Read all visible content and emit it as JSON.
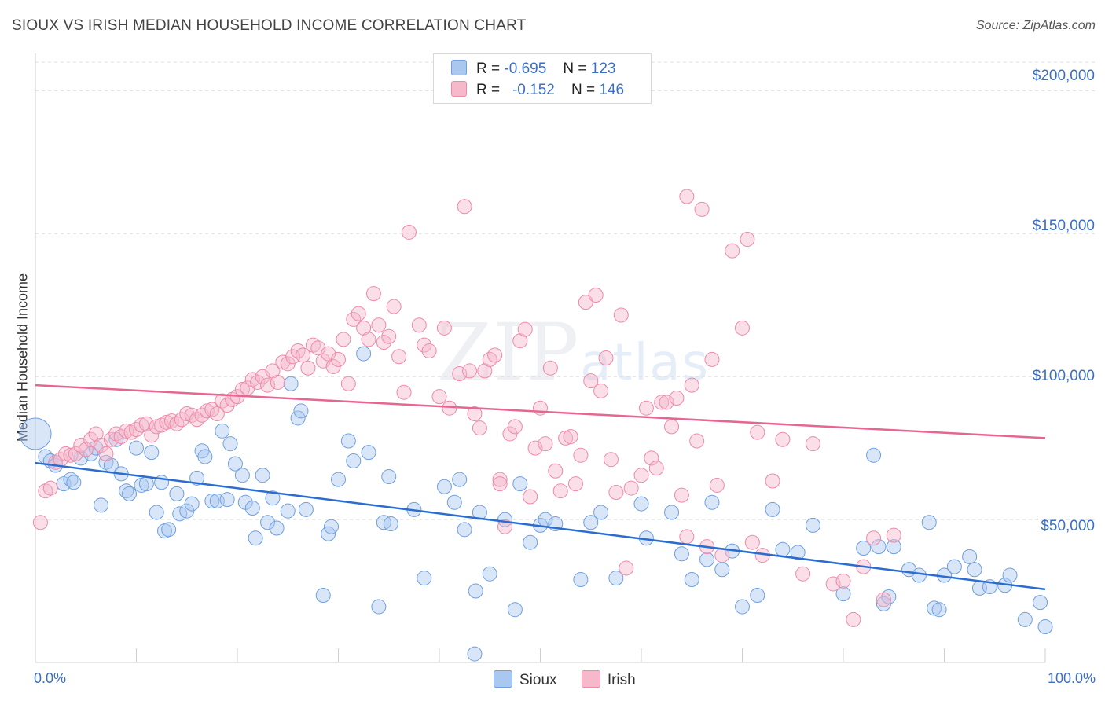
{
  "title": "SIOUX VS IRISH MEDIAN HOUSEHOLD INCOME CORRELATION CHART",
  "source": "Source: ZipAtlas.com",
  "watermark": {
    "zip": "ZIP",
    "atlas": "atlas"
  },
  "legend": {
    "rows": [
      {
        "r_label": "R =",
        "r_value": "-0.695",
        "n_label": "N =",
        "n_value": "123",
        "color": "#a9c7ef"
      },
      {
        "r_label": "R =",
        "r_value": "-0.152",
        "n_label": "N =",
        "n_value": "146",
        "color": "#f5b9cb"
      }
    ],
    "bottom": [
      {
        "label": "Sioux",
        "color": "#a9c7ef"
      },
      {
        "label": "Irish",
        "color": "#f5b9cb"
      }
    ]
  },
  "colors": {
    "sioux": "#6f9fe0",
    "sioux_line": "#2a6dd0",
    "irish": "#ef89a8",
    "irish_line": "#e76592",
    "axis_text": "#3a6fc4",
    "grid": "#dedede"
  },
  "chart_data": {
    "type": "scatter",
    "title": "SIOUX VS IRISH MEDIAN HOUSEHOLD INCOME CORRELATION CHART",
    "xlabel": "",
    "ylabel": "Median Household Income",
    "xlim": [
      0,
      100
    ],
    "ylim": [
      0,
      210000
    ],
    "x_tick_labels": [
      "0.0%",
      "100.0%"
    ],
    "y_ticks": [
      {
        "value": 50000,
        "label": "$50,000"
      },
      {
        "value": 100000,
        "label": "$100,000"
      },
      {
        "value": 150000,
        "label": "$150,000"
      },
      {
        "value": 200000,
        "label": "$200,000"
      }
    ],
    "series": [
      {
        "name": "Sioux",
        "trend": {
          "x": [
            0,
            100
          ],
          "y": [
            69800,
            25600
          ]
        },
        "points": [
          [
            0,
            80000
          ],
          [
            1,
            72000
          ],
          [
            1.5,
            70500
          ],
          [
            2,
            69000
          ],
          [
            2.8,
            62500
          ],
          [
            3.5,
            64000
          ],
          [
            3.8,
            63000
          ],
          [
            4.5,
            71500
          ],
          [
            5.5,
            73000
          ],
          [
            6,
            75000
          ],
          [
            6.5,
            55000
          ],
          [
            7,
            70000
          ],
          [
            7.5,
            69000
          ],
          [
            8,
            78000
          ],
          [
            8.5,
            66000
          ],
          [
            9,
            60000
          ],
          [
            9.3,
            59000
          ],
          [
            10,
            75000
          ],
          [
            10.5,
            62000
          ],
          [
            11,
            62500
          ],
          [
            11.5,
            73500
          ],
          [
            12,
            52500
          ],
          [
            12.5,
            63000
          ],
          [
            12.8,
            46000
          ],
          [
            13.2,
            46500
          ],
          [
            14,
            59000
          ],
          [
            14.3,
            52000
          ],
          [
            15,
            53000
          ],
          [
            15.5,
            55500
          ],
          [
            16,
            64500
          ],
          [
            16.5,
            74000
          ],
          [
            16.8,
            72000
          ],
          [
            17.5,
            56500
          ],
          [
            18,
            56500
          ],
          [
            18.5,
            81000
          ],
          [
            19,
            57000
          ],
          [
            19.3,
            76500
          ],
          [
            19.8,
            69500
          ],
          [
            20.5,
            65500
          ],
          [
            20.8,
            56000
          ],
          [
            21.5,
            54000
          ],
          [
            21.8,
            43500
          ],
          [
            22.5,
            65500
          ],
          [
            23,
            49000
          ],
          [
            23.5,
            57500
          ],
          [
            23.9,
            47000
          ],
          [
            25,
            53000
          ],
          [
            25.3,
            97500
          ],
          [
            26,
            85500
          ],
          [
            26.3,
            88000
          ],
          [
            26.8,
            53500
          ],
          [
            28.5,
            23500
          ],
          [
            29,
            45000
          ],
          [
            29.3,
            47500
          ],
          [
            30,
            64000
          ],
          [
            31,
            77500
          ],
          [
            31.5,
            70500
          ],
          [
            32.5,
            108000
          ],
          [
            33,
            73500
          ],
          [
            34,
            19500
          ],
          [
            34.5,
            49000
          ],
          [
            35,
            65000
          ],
          [
            35.2,
            48500
          ],
          [
            37.5,
            53500
          ],
          [
            40.5,
            61500
          ],
          [
            41.5,
            56000
          ],
          [
            42,
            64000
          ],
          [
            42.5,
            46500
          ],
          [
            43.5,
            3000
          ],
          [
            43.6,
            25000
          ],
          [
            44,
            52500
          ],
          [
            45,
            31000
          ],
          [
            46.5,
            50000
          ],
          [
            47.5,
            18500
          ],
          [
            48,
            62500
          ],
          [
            49,
            42000
          ],
          [
            50,
            48000
          ],
          [
            50.5,
            50000
          ],
          [
            51.5,
            48500
          ],
          [
            54,
            29000
          ],
          [
            55,
            49000
          ],
          [
            56,
            52500
          ],
          [
            57.5,
            29500
          ],
          [
            60,
            55500
          ],
          [
            60.5,
            43500
          ],
          [
            63,
            52500
          ],
          [
            64,
            38000
          ],
          [
            65,
            29000
          ],
          [
            66.5,
            36000
          ],
          [
            67,
            56000
          ],
          [
            68,
            32500
          ],
          [
            69,
            39000
          ],
          [
            70,
            19500
          ],
          [
            71.5,
            23500
          ],
          [
            73,
            53500
          ],
          [
            74,
            39500
          ],
          [
            75.5,
            38500
          ],
          [
            77,
            48000
          ],
          [
            80,
            24000
          ],
          [
            82,
            40000
          ],
          [
            83,
            72500
          ],
          [
            83.5,
            40500
          ],
          [
            84,
            20500
          ],
          [
            84.5,
            23000
          ],
          [
            85,
            40500
          ],
          [
            86.5,
            32500
          ],
          [
            87.5,
            30500
          ],
          [
            88.5,
            49000
          ],
          [
            89,
            19000
          ],
          [
            89.5,
            18500
          ],
          [
            90,
            30500
          ],
          [
            91,
            33500
          ],
          [
            92.5,
            37000
          ],
          [
            93,
            32500
          ],
          [
            93.5,
            26000
          ],
          [
            94.5,
            26500
          ],
          [
            96,
            27000
          ],
          [
            96.5,
            30500
          ],
          [
            98,
            15000
          ],
          [
            100,
            12500
          ],
          [
            99.5,
            21000
          ],
          [
            38.5,
            29500
          ]
        ]
      },
      {
        "name": "Irish",
        "trend": {
          "x": [
            0,
            100
          ],
          "y": [
            97000,
            78500
          ]
        },
        "points": [
          [
            0.5,
            49000
          ],
          [
            1,
            60000
          ],
          [
            1.5,
            61000
          ],
          [
            2,
            70000
          ],
          [
            2.5,
            71000
          ],
          [
            3,
            73000
          ],
          [
            3.5,
            72500
          ],
          [
            4,
            73000
          ],
          [
            4.5,
            76000
          ],
          [
            5,
            74500
          ],
          [
            5.5,
            78000
          ],
          [
            6,
            80000
          ],
          [
            6.5,
            76000
          ],
          [
            7,
            73000
          ],
          [
            7.5,
            78000
          ],
          [
            8,
            80000
          ],
          [
            8.5,
            79000
          ],
          [
            9,
            81000
          ],
          [
            9.5,
            80500
          ],
          [
            10,
            81500
          ],
          [
            10.5,
            83000
          ],
          [
            11,
            83500
          ],
          [
            11.5,
            79500
          ],
          [
            12,
            82500
          ],
          [
            12.5,
            83000
          ],
          [
            13,
            84000
          ],
          [
            13.5,
            84500
          ],
          [
            14,
            83500
          ],
          [
            14.5,
            85000
          ],
          [
            15,
            87000
          ],
          [
            15.5,
            86500
          ],
          [
            16,
            85000
          ],
          [
            16.5,
            86500
          ],
          [
            17,
            88000
          ],
          [
            17.5,
            88500
          ],
          [
            18,
            87000
          ],
          [
            18.5,
            91500
          ],
          [
            19,
            90000
          ],
          [
            19.5,
            92000
          ],
          [
            20,
            93000
          ],
          [
            20.5,
            95500
          ],
          [
            21,
            96000
          ],
          [
            21.5,
            99000
          ],
          [
            22,
            98000
          ],
          [
            22.5,
            100000
          ],
          [
            23,
            97000
          ],
          [
            23.5,
            102000
          ],
          [
            24,
            98000
          ],
          [
            24.5,
            105000
          ],
          [
            25,
            104500
          ],
          [
            25.5,
            107000
          ],
          [
            26,
            109000
          ],
          [
            26.5,
            107500
          ],
          [
            27,
            103000
          ],
          [
            27.5,
            111000
          ],
          [
            28,
            110000
          ],
          [
            28.5,
            105500
          ],
          [
            29,
            108000
          ],
          [
            29.5,
            103500
          ],
          [
            30,
            106000
          ],
          [
            30.5,
            113000
          ],
          [
            31,
            97500
          ],
          [
            31.5,
            120000
          ],
          [
            32,
            122000
          ],
          [
            32.5,
            117000
          ],
          [
            33,
            113000
          ],
          [
            33.5,
            129000
          ],
          [
            34,
            118000
          ],
          [
            34.5,
            112000
          ],
          [
            35,
            114000
          ],
          [
            35.5,
            124500
          ],
          [
            36,
            107000
          ],
          [
            36.5,
            94500
          ],
          [
            37,
            150500
          ],
          [
            38,
            118000
          ],
          [
            38.5,
            111000
          ],
          [
            39,
            109000
          ],
          [
            40,
            93000
          ],
          [
            40.5,
            117000
          ],
          [
            41,
            89000
          ],
          [
            42,
            101000
          ],
          [
            42.5,
            159500
          ],
          [
            43,
            102000
          ],
          [
            43.5,
            87000
          ],
          [
            44,
            82000
          ],
          [
            44.5,
            102000
          ],
          [
            45,
            106000
          ],
          [
            45.5,
            107500
          ],
          [
            46,
            64000
          ],
          [
            46.5,
            47500
          ],
          [
            47,
            80000
          ],
          [
            47.5,
            82500
          ],
          [
            48,
            112500
          ],
          [
            48.5,
            116500
          ],
          [
            49,
            58000
          ],
          [
            49.5,
            75000
          ],
          [
            50,
            89000
          ],
          [
            50.5,
            76500
          ],
          [
            51,
            103000
          ],
          [
            51.5,
            67000
          ],
          [
            52,
            60000
          ],
          [
            52.5,
            78500
          ],
          [
            53,
            79000
          ],
          [
            53.5,
            62500
          ],
          [
            54,
            72500
          ],
          [
            54.5,
            126000
          ],
          [
            55,
            98500
          ],
          [
            55.5,
            128500
          ],
          [
            56,
            95000
          ],
          [
            56.5,
            106500
          ],
          [
            57,
            71000
          ],
          [
            57.5,
            59500
          ],
          [
            58,
            121500
          ],
          [
            59,
            61000
          ],
          [
            60,
            65500
          ],
          [
            60.5,
            89000
          ],
          [
            61,
            71500
          ],
          [
            61.5,
            68000
          ],
          [
            62,
            91000
          ],
          [
            62.5,
            91000
          ],
          [
            63,
            82500
          ],
          [
            63.5,
            92500
          ],
          [
            64,
            58500
          ],
          [
            64.5,
            163000
          ],
          [
            65,
            97000
          ],
          [
            65.5,
            77500
          ],
          [
            66,
            158500
          ],
          [
            66.5,
            40500
          ],
          [
            67,
            106000
          ],
          [
            67.5,
            62000
          ],
          [
            68,
            37500
          ],
          [
            69,
            144000
          ],
          [
            70,
            117000
          ],
          [
            70.5,
            148000
          ],
          [
            71,
            42000
          ],
          [
            71.5,
            80500
          ],
          [
            72,
            37500
          ],
          [
            73,
            63500
          ],
          [
            74,
            78000
          ],
          [
            76,
            31000
          ],
          [
            77,
            76500
          ],
          [
            79,
            27500
          ],
          [
            80,
            28500
          ],
          [
            81,
            15000
          ],
          [
            82,
            33500
          ],
          [
            83,
            43500
          ],
          [
            84,
            22000
          ],
          [
            85,
            44500
          ],
          [
            46,
            62500
          ],
          [
            58.5,
            33000
          ],
          [
            64.5,
            44000
          ]
        ]
      }
    ]
  }
}
